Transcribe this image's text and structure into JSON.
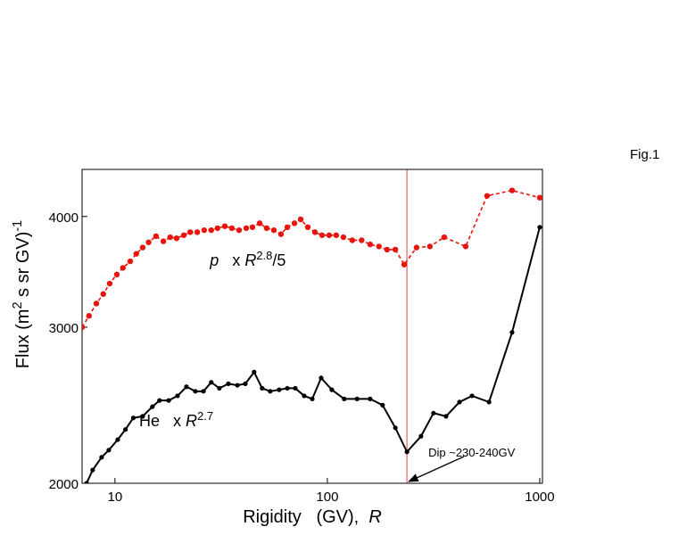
{
  "chart_data": {
    "type": "line",
    "figure_label": "Fig.1",
    "x_label": [
      {
        "text": "Rigidity   (GV),  "
      },
      {
        "text": "R",
        "italic": true
      }
    ],
    "y_label": [
      {
        "text": "Flux (m"
      },
      {
        "text": "2",
        "sup": true
      },
      {
        "text": " s sr GV)"
      },
      {
        "text": "-1",
        "sup": true
      }
    ],
    "xscale": "log",
    "yscale": "log",
    "xlim": [
      7,
      1030
    ],
    "ylim": [
      2000,
      4520
    ],
    "xticks": [
      10,
      100,
      1000
    ],
    "yticks": [
      2000,
      3000,
      4000
    ],
    "vline": {
      "x": 237,
      "color": "#f08080"
    },
    "annotation": {
      "text": "Dip ~230-240GV",
      "x": 237,
      "y": 2000
    },
    "series": [
      {
        "label": [
          {
            "text": "p",
            "italic": true
          },
          {
            "text": "   x "
          },
          {
            "text": "R",
            "italic": true
          },
          {
            "text": "2.8",
            "sup": true
          },
          {
            "text": "/5"
          }
        ],
        "label_at": [
          28,
          3520
        ],
        "color": "#e8150e",
        "dash": true,
        "x": [
          7.0,
          7.55,
          8.17,
          8.81,
          9.44,
          10.2,
          10.9,
          11.8,
          12.6,
          13.5,
          14.4,
          15.6,
          16.9,
          18.2,
          19.5,
          21.1,
          22.6,
          24.4,
          26.3,
          28.4,
          30.4,
          32.9,
          35.5,
          38.4,
          41.5,
          44.4,
          48.0,
          51.8,
          56.0,
          60.5,
          64.8,
          70.0,
          74.9,
          80.9,
          87.4,
          94.4,
          102,
          110,
          119,
          131,
          145,
          159,
          175,
          191,
          209,
          230,
          263,
          304,
          355,
          448,
          565,
          741,
          1000
        ],
        "values": [
          3000,
          3090,
          3190,
          3270,
          3360,
          3440,
          3500,
          3560,
          3630,
          3690,
          3740,
          3800,
          3750,
          3790,
          3780,
          3810,
          3840,
          3840,
          3860,
          3860,
          3880,
          3900,
          3880,
          3860,
          3880,
          3890,
          3930,
          3880,
          3860,
          3820,
          3890,
          3930,
          3970,
          3890,
          3840,
          3810,
          3810,
          3810,
          3790,
          3760,
          3760,
          3720,
          3700,
          3670,
          3670,
          3530,
          3690,
          3700,
          3790,
          3700,
          4220,
          4280,
          4200
        ]
      },
      {
        "label": [
          {
            "text": "He"
          },
          {
            "text": "   x "
          },
          {
            "text": "R",
            "italic": true
          },
          {
            "text": "2.7",
            "sup": true
          }
        ],
        "label_at": [
          13,
          2320
        ],
        "color": "#000000",
        "dash": false,
        "x": [
          7.35,
          7.85,
          8.65,
          9.35,
          10.3,
          11.2,
          12.2,
          13.5,
          15.0,
          16.2,
          17.9,
          19.7,
          21.7,
          23.9,
          26.1,
          28.4,
          31.0,
          34.2,
          37.7,
          41.1,
          45.2,
          49.3,
          53.8,
          59.3,
          64.8,
          70.6,
          77.8,
          84.9,
          93.5,
          105,
          120,
          138,
          159,
          182,
          209,
          237,
          276,
          316,
          362,
          419,
          480,
          577,
          741,
          1000
        ],
        "values": [
          2000,
          2070,
          2140,
          2180,
          2240,
          2300,
          2370,
          2380,
          2440,
          2480,
          2480,
          2510,
          2570,
          2540,
          2540,
          2600,
          2560,
          2590,
          2580,
          2590,
          2670,
          2560,
          2540,
          2550,
          2560,
          2560,
          2510,
          2490,
          2630,
          2550,
          2490,
          2490,
          2490,
          2450,
          2310,
          2170,
          2260,
          2400,
          2380,
          2470,
          2510,
          2470,
          2960,
          3890
        ]
      }
    ]
  }
}
